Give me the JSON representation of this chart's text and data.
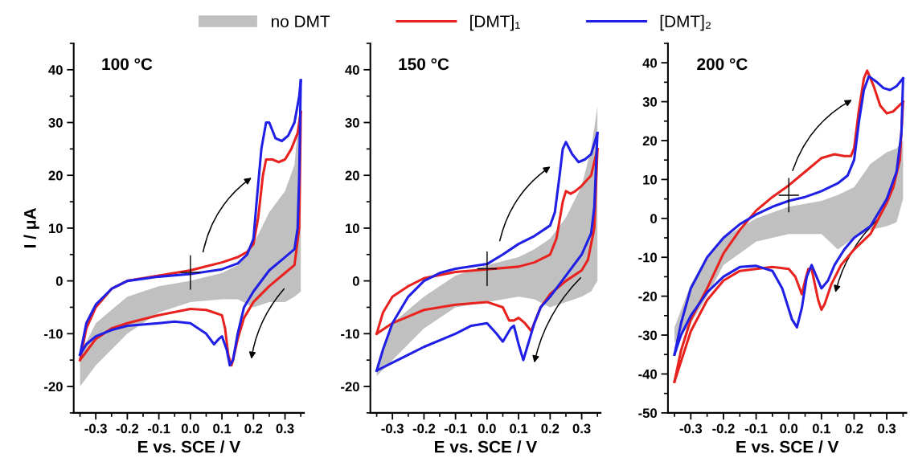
{
  "chart_data": [
    {
      "type": "line",
      "xlabel": "E vs. SCE / V",
      "ylabel": "I / μA",
      "annotations": [
        "100 °C"
      ],
      "legend": "top",
      "grid": false,
      "xlim": [
        -0.37,
        0.36
      ],
      "ylim": [
        -25,
        45
      ],
      "xticks": [
        {
          "value": -0.35,
          "label": null
        },
        {
          "value": -0.3,
          "label": "-0.3"
        },
        {
          "value": -0.25,
          "label": null
        },
        {
          "value": -0.2,
          "label": "-0.2"
        },
        {
          "value": -0.15,
          "label": null
        },
        {
          "value": -0.1,
          "label": "-0.1"
        },
        {
          "value": -0.05,
          "label": null
        },
        {
          "value": 0,
          "label": "0.0"
        },
        {
          "value": 0.05,
          "label": null
        },
        {
          "value": 0.1,
          "label": "0.1"
        },
        {
          "value": 0.15,
          "label": null
        },
        {
          "value": 0.2,
          "label": "0.2"
        },
        {
          "value": 0.25,
          "label": null
        },
        {
          "value": 0.3,
          "label": "0.3"
        },
        {
          "value": 0.35,
          "label": null
        }
      ],
      "yticks": [
        {
          "value": -25,
          "label": null
        },
        -20,
        {
          "value": -15,
          "label": null
        },
        -10,
        {
          "value": -5,
          "label": null
        },
        0,
        {
          "value": 5,
          "label": null
        },
        10,
        {
          "value": 15,
          "label": null
        },
        20,
        {
          "value": 25,
          "label": null
        },
        30,
        {
          "value": 35,
          "label": null
        },
        40,
        {
          "value": 45,
          "label": null
        }
      ],
      "series": [
        {
          "name": "no DMT",
          "type": "area",
          "color": "#c0c0c0",
          "x": [
            -0.35,
            -0.3,
            -0.2,
            -0.1,
            0,
            0.1,
            0.15,
            0.2,
            0.25,
            0.3,
            0.33,
            0.35,
            0.35,
            0.33,
            0.3,
            0.25,
            0.2,
            0.15,
            0.1,
            0,
            -0.1,
            -0.2,
            -0.3,
            -0.35
          ],
          "values": [
            -14,
            -8,
            -3,
            -1,
            0,
            1.5,
            3,
            7,
            13,
            17,
            22,
            35,
            -2,
            -3,
            -4,
            -4,
            -5,
            -3.5,
            -3.5,
            -4,
            -6,
            -10,
            -16,
            -20
          ]
        },
        {
          "name": "[DMT]₁",
          "color": "#e8231f",
          "x": [
            -0.35,
            -0.33,
            -0.3,
            -0.25,
            -0.2,
            -0.1,
            0,
            0.1,
            0.15,
            0.18,
            0.2,
            0.215,
            0.23,
            0.24,
            0.26,
            0.28,
            0.3,
            0.32,
            0.34,
            0.35
          ],
          "values": [
            -15,
            -9,
            -5,
            -1.5,
            0,
            1,
            2,
            3.5,
            4.5,
            5.5,
            7,
            12,
            20,
            23,
            23,
            22.5,
            23,
            25,
            28,
            32
          ]
        },
        {
          "color": "#e8231f",
          "x": [
            -0.35,
            -0.3,
            -0.25,
            -0.2,
            -0.1,
            0,
            0.05,
            0.075,
            0.1,
            0.11,
            0.12,
            0.13,
            0.135,
            0.15,
            0.17,
            0.2,
            0.25,
            0.3,
            0.33,
            0.345,
            0.35
          ],
          "values": [
            -15,
            -11,
            -9,
            -8,
            -6.5,
            -5.3,
            -5.5,
            -6,
            -6.5,
            -9,
            -14,
            -16,
            -15,
            -11,
            -7,
            -4,
            -1,
            1.5,
            3,
            10,
            32
          ]
        },
        {
          "name": "[DMT]₂",
          "color": "#1f1fe6",
          "x": [
            -0.35,
            -0.33,
            -0.3,
            -0.25,
            -0.2,
            -0.1,
            0,
            0.1,
            0.15,
            0.18,
            0.2,
            0.21,
            0.225,
            0.24,
            0.25,
            0.27,
            0.29,
            0.31,
            0.33,
            0.345,
            0.35
          ],
          "values": [
            -14,
            -8,
            -4.5,
            -1.5,
            0,
            0.8,
            1.3,
            2.2,
            3.3,
            5,
            8,
            15,
            25,
            30,
            30,
            27,
            26.5,
            27.5,
            30,
            35,
            38
          ]
        },
        {
          "color": "#1f1fe6",
          "x": [
            -0.35,
            -0.33,
            -0.3,
            -0.25,
            -0.2,
            -0.1,
            -0.05,
            0,
            0.05,
            0.075,
            0.09,
            0.1,
            0.115,
            0.125,
            0.135,
            0.15,
            0.17,
            0.2,
            0.25,
            0.3,
            0.33,
            0.34,
            0.345,
            0.35
          ],
          "values": [
            -14,
            -12,
            -10.5,
            -9.3,
            -8.5,
            -8,
            -7.7,
            -8,
            -10,
            -12,
            -11,
            -10.5,
            -13,
            -16,
            -15,
            -10,
            -5,
            -2,
            2,
            4.5,
            6,
            10,
            20,
            38
          ]
        }
      ]
    },
    {
      "type": "line",
      "xlabel": "E vs. SCE / V",
      "annotations": [
        "150 °C"
      ],
      "grid": false,
      "xlim": [
        -0.37,
        0.36
      ],
      "ylim": [
        -25,
        45
      ],
      "xticks": [
        {
          "value": -0.35,
          "label": null
        },
        {
          "value": -0.3,
          "label": "-0.3"
        },
        {
          "value": -0.25,
          "label": null
        },
        {
          "value": -0.2,
          "label": "-0.2"
        },
        {
          "value": -0.15,
          "label": null
        },
        {
          "value": -0.1,
          "label": "-0.1"
        },
        {
          "value": -0.05,
          "label": null
        },
        {
          "value": 0,
          "label": "0.0"
        },
        {
          "value": 0.05,
          "label": null
        },
        {
          "value": 0.1,
          "label": "0.1"
        },
        {
          "value": 0.15,
          "label": null
        },
        {
          "value": 0.2,
          "label": "0.2"
        },
        {
          "value": 0.25,
          "label": null
        },
        {
          "value": 0.3,
          "label": "0.3"
        },
        {
          "value": 0.35,
          "label": null
        }
      ],
      "yticks": [
        {
          "value": -25,
          "label": null
        },
        -20,
        {
          "value": -15,
          "label": null
        },
        -10,
        {
          "value": -5,
          "label": null
        },
        0,
        {
          "value": 5,
          "label": null
        },
        10,
        {
          "value": 15,
          "label": null
        },
        20,
        {
          "value": 25,
          "label": null
        },
        30,
        {
          "value": 35,
          "label": null
        },
        40,
        {
          "value": 45,
          "label": null
        }
      ],
      "series": [
        {
          "type": "area",
          "color": "#c0c0c0",
          "x": [
            -0.35,
            -0.3,
            -0.2,
            -0.1,
            0,
            0.1,
            0.15,
            0.2,
            0.25,
            0.3,
            0.33,
            0.35,
            0.35,
            0.33,
            0.3,
            0.25,
            0.2,
            0.15,
            0.1,
            0,
            -0.1,
            -0.2,
            -0.3,
            -0.35
          ],
          "values": [
            -16,
            -8,
            -3,
            1,
            3,
            4.5,
            6,
            8,
            12,
            18,
            25,
            33,
            0,
            -2,
            -3,
            -4,
            -5,
            -3.5,
            -3,
            -4,
            -5,
            -9,
            -15,
            -18
          ]
        },
        {
          "color": "#e8231f",
          "x": [
            -0.35,
            -0.33,
            -0.3,
            -0.25,
            -0.2,
            -0.1,
            0,
            0.1,
            0.15,
            0.2,
            0.22,
            0.24,
            0.25,
            0.265,
            0.28,
            0.3,
            0.33,
            0.35
          ],
          "values": [
            -10,
            -6,
            -3,
            -1,
            0.5,
            1.7,
            2.2,
            2.7,
            3.5,
            5,
            8,
            15,
            17,
            16.5,
            17,
            18,
            20,
            25
          ]
        },
        {
          "color": "#e8231f",
          "x": [
            -0.35,
            -0.3,
            -0.2,
            -0.1,
            0,
            0.05,
            0.07,
            0.085,
            0.1,
            0.12,
            0.14,
            0.15,
            0.17,
            0.2,
            0.25,
            0.3,
            0.32,
            0.34,
            0.35
          ],
          "values": [
            -10,
            -8,
            -5.5,
            -4.5,
            -4,
            -5,
            -7.5,
            -7.5,
            -7,
            -8,
            -9.5,
            -8,
            -5,
            -2.5,
            0,
            2,
            4,
            10,
            25
          ]
        },
        {
          "color": "#1f1fe6",
          "x": [
            -0.35,
            -0.33,
            -0.3,
            -0.25,
            -0.2,
            -0.15,
            -0.1,
            0,
            0.05,
            0.1,
            0.15,
            0.2,
            0.215,
            0.23,
            0.24,
            0.25,
            0.27,
            0.29,
            0.31,
            0.33,
            0.35
          ],
          "values": [
            -17,
            -13,
            -8,
            -3,
            0,
            1.5,
            2.3,
            3.2,
            5,
            7,
            8.5,
            10.5,
            13,
            20,
            25,
            26.3,
            24,
            22.5,
            23,
            24,
            28
          ]
        },
        {
          "color": "#1f1fe6",
          "x": [
            -0.35,
            -0.3,
            -0.2,
            -0.1,
            -0.05,
            0,
            0.03,
            0.05,
            0.075,
            0.085,
            0.1,
            0.115,
            0.13,
            0.15,
            0.17,
            0.2,
            0.25,
            0.3,
            0.33,
            0.34,
            0.35
          ],
          "values": [
            -17,
            -15.5,
            -12.5,
            -10,
            -8.5,
            -8,
            -10,
            -11.5,
            -9,
            -8.5,
            -12,
            -15,
            -12,
            -8,
            -5,
            -3,
            1,
            5,
            9,
            14,
            28
          ]
        }
      ]
    },
    {
      "type": "line",
      "xlabel": "E vs. SCE / V",
      "annotations": [
        "200 °C"
      ],
      "grid": false,
      "xlim": [
        -0.37,
        0.36
      ],
      "ylim": [
        -50,
        45
      ],
      "xticks": [
        {
          "value": -0.35,
          "label": null
        },
        {
          "value": -0.3,
          "label": "-0.3"
        },
        {
          "value": -0.25,
          "label": null
        },
        {
          "value": -0.2,
          "label": "-0.2"
        },
        {
          "value": -0.15,
          "label": null
        },
        {
          "value": -0.1,
          "label": "-0.1"
        },
        {
          "value": -0.05,
          "label": null
        },
        {
          "value": 0,
          "label": "0.0"
        },
        {
          "value": 0.05,
          "label": null
        },
        {
          "value": 0.1,
          "label": "0.1"
        },
        {
          "value": 0.15,
          "label": null
        },
        {
          "value": 0.2,
          "label": "0.2"
        },
        {
          "value": 0.25,
          "label": null
        },
        {
          "value": 0.3,
          "label": "0.3"
        },
        {
          "value": 0.35,
          "label": null
        }
      ],
      "yticks": [
        -50,
        {
          "value": -45,
          "label": null
        },
        -40,
        {
          "value": -35,
          "label": null
        },
        -30,
        {
          "value": -25,
          "label": null
        },
        -20,
        {
          "value": -15,
          "label": null
        },
        -10,
        {
          "value": -5,
          "label": null
        },
        0,
        {
          "value": 5,
          "label": null
        },
        10,
        {
          "value": 15,
          "label": null
        },
        20,
        {
          "value": 25,
          "label": null
        },
        30,
        {
          "value": 35,
          "label": null
        },
        40,
        {
          "value": 45,
          "label": null
        }
      ],
      "series": [
        {
          "type": "area",
          "color": "#c0c0c0",
          "x": [
            -0.35,
            -0.3,
            -0.25,
            -0.2,
            -0.1,
            0,
            0.1,
            0.15,
            0.2,
            0.25,
            0.3,
            0.33,
            0.35,
            0.35,
            0.33,
            0.3,
            0.25,
            0.2,
            0.15,
            0.1,
            0,
            -0.1,
            -0.2,
            -0.25,
            -0.3,
            -0.35
          ],
          "values": [
            -28,
            -17,
            -10,
            -5,
            0,
            3,
            4.5,
            6,
            8,
            14,
            17,
            18,
            20,
            5,
            -1,
            -2,
            -3,
            -5,
            -8,
            -4,
            -4,
            -6,
            -12,
            -20,
            -27,
            -32
          ]
        },
        {
          "color": "#e8231f",
          "x": [
            -0.35,
            -0.33,
            -0.3,
            -0.25,
            -0.2,
            -0.15,
            -0.1,
            -0.05,
            0,
            0.05,
            0.1,
            0.14,
            0.17,
            0.19,
            0.2,
            0.215,
            0.23,
            0.24,
            0.26,
            0.28,
            0.3,
            0.32,
            0.35
          ],
          "values": [
            -42,
            -34,
            -26,
            -18,
            -9,
            -3,
            2,
            5.5,
            8.5,
            12,
            15.5,
            16.5,
            16,
            16,
            18,
            28,
            36,
            38,
            34,
            29,
            27,
            27.5,
            30
          ]
        },
        {
          "color": "#e8231f",
          "x": [
            -0.35,
            -0.3,
            -0.25,
            -0.2,
            -0.15,
            -0.1,
            -0.05,
            0,
            0.02,
            0.04,
            0.05,
            0.06,
            0.07,
            0.09,
            0.1,
            0.11,
            0.13,
            0.16,
            0.2,
            0.25,
            0.3,
            0.32,
            0.34,
            0.35
          ],
          "values": [
            -42,
            -29,
            -21,
            -16,
            -13.5,
            -13,
            -12.5,
            -13,
            -15,
            -19.5,
            -16,
            -13,
            -13,
            -21,
            -23.5,
            -22,
            -17,
            -12,
            -8,
            -4,
            4,
            8,
            15,
            30
          ]
        },
        {
          "color": "#1f1fe6",
          "x": [
            -0.35,
            -0.33,
            -0.3,
            -0.25,
            -0.2,
            -0.15,
            -0.1,
            -0.05,
            0,
            0.05,
            0.1,
            0.15,
            0.18,
            0.2,
            0.215,
            0.23,
            0.245,
            0.27,
            0.29,
            0.31,
            0.33,
            0.35
          ],
          "values": [
            -35,
            -27,
            -18,
            -10,
            -5,
            -1.5,
            1,
            3,
            4.5,
            5.5,
            7,
            9,
            11,
            15,
            25,
            33,
            36.5,
            35,
            33.5,
            33,
            34,
            36
          ]
        },
        {
          "color": "#1f1fe6",
          "x": [
            -0.35,
            -0.33,
            -0.3,
            -0.25,
            -0.2,
            -0.15,
            -0.1,
            -0.05,
            -0.02,
            0.01,
            0.025,
            0.04,
            0.055,
            0.07,
            0.085,
            0.1,
            0.12,
            0.14,
            0.17,
            0.2,
            0.25,
            0.3,
            0.33,
            0.345,
            0.35
          ],
          "values": [
            -35,
            -30,
            -25,
            -19,
            -15,
            -12.5,
            -12.2,
            -13.5,
            -18,
            -26,
            -28,
            -23,
            -15,
            -12,
            -15,
            -18,
            -16,
            -12,
            -8,
            -5,
            -2,
            5,
            12,
            22,
            36
          ]
        }
      ]
    }
  ]
}
